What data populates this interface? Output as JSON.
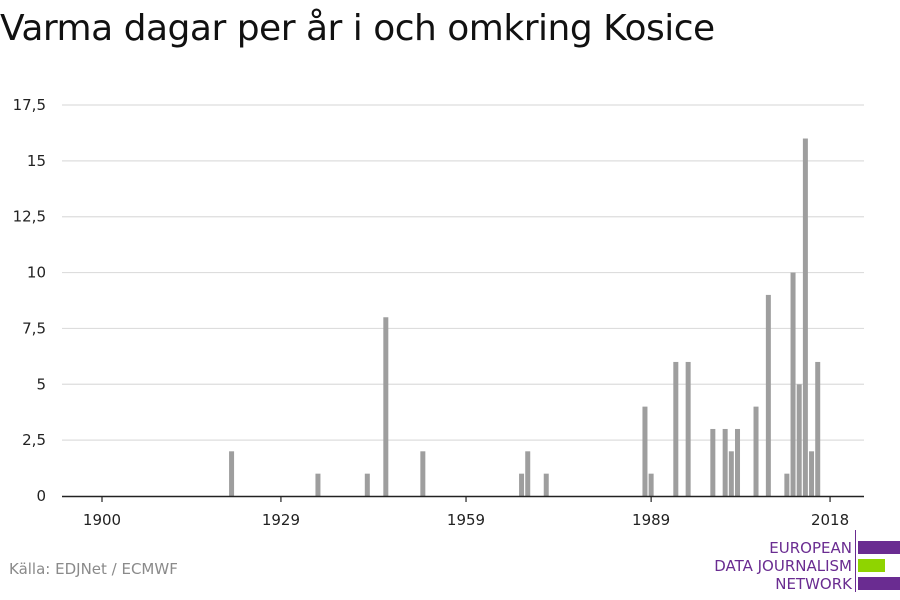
{
  "title": "Varma dagar per år i och omkring Kosice",
  "source": "Källa: EDJNet / ECMWF",
  "logo": {
    "lines": [
      "EUROPEAN",
      "DATA JOURNALISM",
      "NETWORK"
    ],
    "colors": {
      "purple": "#6a2c91",
      "green": "#8fd400"
    }
  },
  "colors": {
    "bar": "#9e9e9e",
    "grid": "#dddddd",
    "axis": "#222222",
    "text": "#222222"
  },
  "chart_data": {
    "type": "bar",
    "title": "Varma dagar per år i och omkring Kosice",
    "xlabel": "",
    "ylabel": "",
    "xlim": [
      1900,
      2018
    ],
    "ylim": [
      0,
      17.5
    ],
    "x_ticks": [
      1900,
      1929,
      1959,
      1989,
      2018
    ],
    "y_ticks": [
      {
        "value": 0,
        "label": "0"
      },
      {
        "value": 2.5,
        "label": "2,5"
      },
      {
        "value": 5,
        "label": "5"
      },
      {
        "value": 7.5,
        "label": "7,5"
      },
      {
        "value": 10,
        "label": "10"
      },
      {
        "value": 12.5,
        "label": "12,5"
      },
      {
        "value": 15,
        "label": "15"
      },
      {
        "value": 17.5,
        "label": "17,5"
      }
    ],
    "grid": true,
    "x": [
      1921,
      1935,
      1943,
      1946,
      1952,
      1968,
      1969,
      1972,
      1988,
      1989,
      1993,
      1995,
      1999,
      2001,
      2002,
      2003,
      2006,
      2008,
      2011,
      2012,
      2013,
      2014,
      2015,
      2016
    ],
    "values": [
      2,
      1,
      1,
      8,
      2,
      1,
      2,
      1,
      4,
      1,
      6,
      6,
      3,
      3,
      2,
      3,
      4,
      9,
      1,
      10,
      5,
      16,
      2,
      6
    ]
  }
}
